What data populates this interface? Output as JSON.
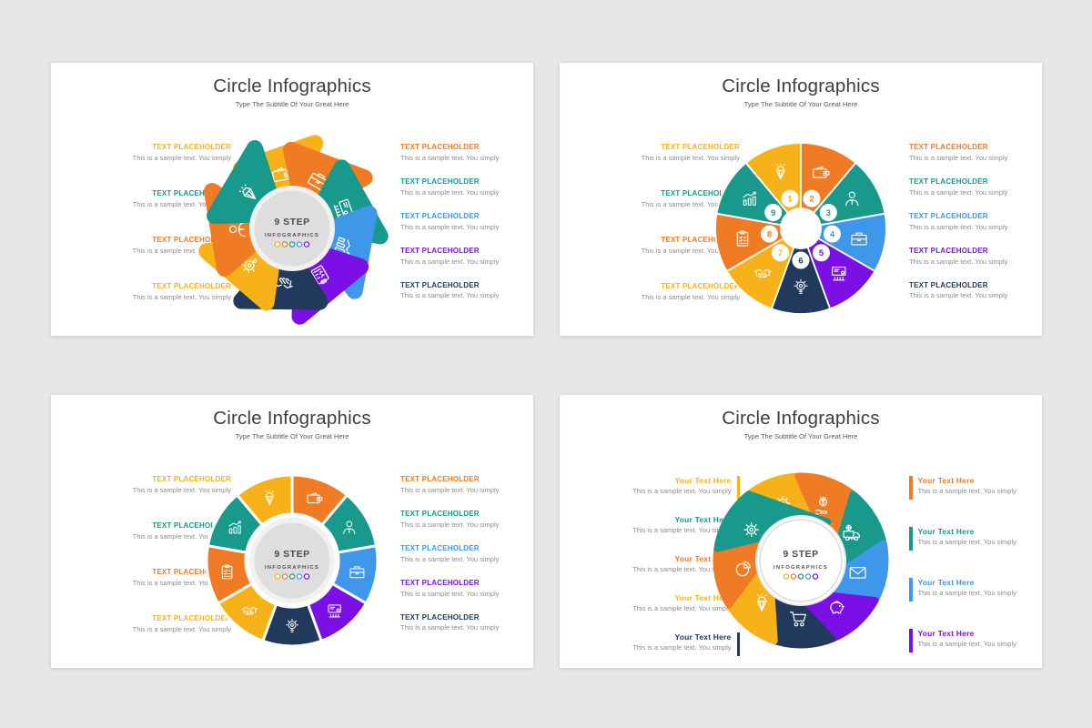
{
  "page": {
    "background": "#e8e6e7"
  },
  "palette": {
    "yellow": "#F7B219",
    "orange": "#EF7B24",
    "teal": "#18998C",
    "blue": "#3E97E8",
    "purple": "#7B10E6",
    "navy": "#20395C",
    "title_text": "#3e3e3e",
    "body_text": "#8c8c8c",
    "center_text": "#4c4c4c"
  },
  "slides": [
    {
      "title": "Circle Infographics",
      "subtitle": "Type The Subtitle Of Your Great Here",
      "item_style": "plain",
      "left_items": [
        {
          "heading": "TEXT PLACEHOLDER",
          "body": "This is a sample text. You simply",
          "color": "yellow"
        },
        {
          "heading": "TEXT PLACEHOLDER",
          "body": "This is a sample text. You simply",
          "color": "teal"
        },
        {
          "heading": "TEXT PLACEHOLDER",
          "body": "This is a sample text. You simply",
          "color": "orange"
        },
        {
          "heading": "TEXT PLACEHOLDER",
          "body": "This is a sample text. You simply",
          "color": "yellow"
        }
      ],
      "right_items": [
        {
          "heading": "TEXT PLACEHOLDER",
          "body": "This is a sample text. You simply",
          "color": "orange"
        },
        {
          "heading": "TEXT PLACEHOLDER",
          "body": "This is a sample text. You simply",
          "color": "teal"
        },
        {
          "heading": "TEXT PLACEHOLDER",
          "body": "This is a sample text. You simply",
          "color": "blue"
        },
        {
          "heading": "TEXT PLACEHOLDER",
          "body": "This is a sample text. You simply",
          "color": "purple"
        },
        {
          "heading": "TEXT PLACEHOLDER",
          "body": "This is a sample text. You simply",
          "color": "navy"
        }
      ],
      "diagram": {
        "type": "pinwheel",
        "center": {
          "line1": "9 STEP",
          "line2": "INFOGRAPHICS",
          "dot_colors": [
            "yellow",
            "orange",
            "teal",
            "blue",
            "purple"
          ],
          "style": "gray"
        },
        "segments": [
          {
            "color": "yellow",
            "icon": "wallet-icon"
          },
          {
            "color": "orange",
            "icon": "briefcase-icon"
          },
          {
            "color": "teal",
            "icon": "presentation-icon"
          },
          {
            "color": "blue",
            "icon": "growth-chart-icon"
          },
          {
            "color": "purple",
            "icon": "clipboard-icon"
          },
          {
            "color": "navy",
            "icon": "handshake-icon"
          },
          {
            "color": "yellow",
            "icon": "lightbulb-icon"
          },
          {
            "color": "orange",
            "icon": "person-icon"
          },
          {
            "color": "teal",
            "icon": "diamond-icon"
          }
        ]
      }
    },
    {
      "title": "Circle Infographics",
      "subtitle": "Type The Subtitle Of Your Great Here",
      "item_style": "plain",
      "left_items": [
        {
          "heading": "TEXT PLACEHOLDER",
          "body": "This is a sample text. You simply",
          "color": "yellow"
        },
        {
          "heading": "TEXT PLACEHOLDER",
          "body": "This is a sample text. You simply",
          "color": "teal"
        },
        {
          "heading": "TEXT PLACEHOLDER",
          "body": "This is a sample text. You simply",
          "color": "orange"
        },
        {
          "heading": "TEXT PLACEHOLDER",
          "body": "This is a sample text. You simply",
          "color": "yellow"
        }
      ],
      "right_items": [
        {
          "heading": "TEXT PLACEHOLDER",
          "body": "This is a sample text. You simply",
          "color": "orange"
        },
        {
          "heading": "TEXT PLACEHOLDER",
          "body": "This is a sample text. You simply",
          "color": "teal"
        },
        {
          "heading": "TEXT PLACEHOLDER",
          "body": "This is a sample text. You simply",
          "color": "blue"
        },
        {
          "heading": "TEXT PLACEHOLDER",
          "body": "This is a sample text. You simply",
          "color": "purple"
        },
        {
          "heading": "TEXT PLACEHOLDER",
          "body": "This is a sample text. You simply",
          "color": "navy"
        }
      ],
      "diagram": {
        "type": "pie",
        "center": null,
        "segments": [
          {
            "number": "1",
            "color": "yellow",
            "icon": "diamond-icon"
          },
          {
            "number": "2",
            "color": "orange",
            "icon": "wallet-icon"
          },
          {
            "number": "3",
            "color": "teal",
            "icon": "person-icon"
          },
          {
            "number": "4",
            "color": "blue",
            "icon": "briefcase-icon"
          },
          {
            "number": "5",
            "color": "purple",
            "icon": "presentation-icon"
          },
          {
            "number": "6",
            "color": "navy",
            "icon": "lightbulb-icon"
          },
          {
            "number": "7",
            "color": "yellow",
            "icon": "handshake-icon"
          },
          {
            "number": "8",
            "color": "orange",
            "icon": "clipboard-icon"
          },
          {
            "number": "9",
            "color": "teal",
            "icon": "growth-chart-icon"
          }
        ]
      }
    },
    {
      "title": "Circle Infographics",
      "subtitle": "Type The Subtitle Of Your Great Here",
      "item_style": "plain",
      "left_items": [
        {
          "heading": "TEXT PLACEHOLDER",
          "body": "This is a sample text. You simply",
          "color": "yellow"
        },
        {
          "heading": "TEXT PLACEHOLDER",
          "body": "This is a sample text. You simply",
          "color": "teal"
        },
        {
          "heading": "TEXT PLACEHOLDER",
          "body": "This is a sample text. You simply",
          "color": "orange"
        },
        {
          "heading": "TEXT PLACEHOLDER",
          "body": "This is a sample text. You simply",
          "color": "yellow"
        }
      ],
      "right_items": [
        {
          "heading": "TEXT PLACEHOLDER",
          "body": "This is a sample text. You simply",
          "color": "orange"
        },
        {
          "heading": "TEXT PLACEHOLDER",
          "body": "This is a sample text. You simply",
          "color": "teal"
        },
        {
          "heading": "TEXT PLACEHOLDER",
          "body": "This is a sample text. You simply",
          "color": "blue"
        },
        {
          "heading": "TEXT PLACEHOLDER",
          "body": "This is a sample text. You simply",
          "color": "purple"
        },
        {
          "heading": "TEXT PLACEHOLDER",
          "body": "This is a sample text. You simply",
          "color": "navy"
        }
      ],
      "diagram": {
        "type": "donut",
        "center": {
          "line1": "9 STEP",
          "line2": "INFOGRAPHICS",
          "dot_colors": [
            "yellow",
            "orange",
            "teal",
            "blue",
            "purple"
          ],
          "style": "gray"
        },
        "segments": [
          {
            "color": "orange",
            "icon": "wallet-icon"
          },
          {
            "color": "teal",
            "icon": "person-icon"
          },
          {
            "color": "blue",
            "icon": "briefcase-icon"
          },
          {
            "color": "purple",
            "icon": "presentation-icon"
          },
          {
            "color": "navy",
            "icon": "lightbulb-icon"
          },
          {
            "color": "yellow",
            "icon": "handshake-icon"
          },
          {
            "color": "orange",
            "icon": "clipboard-icon"
          },
          {
            "color": "teal",
            "icon": "growth-chart-icon"
          },
          {
            "color": "yellow",
            "icon": "diamond-icon"
          }
        ]
      }
    },
    {
      "title": "Circle Infographics",
      "subtitle": "Type The Subtitle Of Your Great Here",
      "item_style": "bar",
      "left_items": [
        {
          "heading": "Your Text Here",
          "body": "This is a sample text. You simply",
          "color": "yellow"
        },
        {
          "heading": "Your Text Here",
          "body": "This is a sample text. You simply",
          "color": "teal"
        },
        {
          "heading": "Your Text Here",
          "body": "This is a sample text. You simply",
          "color": "orange"
        },
        {
          "heading": "Your Text Here",
          "body": "This is a sample text. You simply",
          "color": "yellow"
        },
        {
          "heading": "Your Text Here",
          "body": "This is a sample text. You simply",
          "color": "navy"
        }
      ],
      "right_items": [
        {
          "heading": "Your Text Here",
          "body": "This is a sample text. You simply",
          "color": "orange"
        },
        {
          "heading": "Your Text Here",
          "body": "This is a sample text. You simply",
          "color": "teal"
        },
        {
          "heading": "Your Text Here",
          "body": "This is a sample text. You simply",
          "color": "blue"
        },
        {
          "heading": "Your Text Here",
          "body": "This is a sample text. You simply",
          "color": "purple"
        }
      ],
      "diagram": {
        "type": "shutter",
        "center": {
          "line1": "9 STEP",
          "line2": "INFOGRAPHICS",
          "dot_colors": [
            "yellow",
            "orange",
            "teal",
            "blue",
            "purple"
          ],
          "style": "white"
        },
        "segments": [
          {
            "color": "yellow",
            "icon": "lightbulb-icon"
          },
          {
            "color": "orange",
            "icon": "money-hand-icon"
          },
          {
            "color": "teal",
            "icon": "delivery-truck-icon"
          },
          {
            "color": "blue",
            "icon": "envelope-icon"
          },
          {
            "color": "purple",
            "icon": "piggy-bank-icon"
          },
          {
            "color": "navy",
            "icon": "shopping-cart-icon"
          },
          {
            "color": "yellow",
            "icon": "diamond-icon"
          },
          {
            "color": "orange",
            "icon": "pie-chart-icon"
          },
          {
            "color": "teal",
            "icon": "gear-icon"
          }
        ]
      }
    }
  ]
}
